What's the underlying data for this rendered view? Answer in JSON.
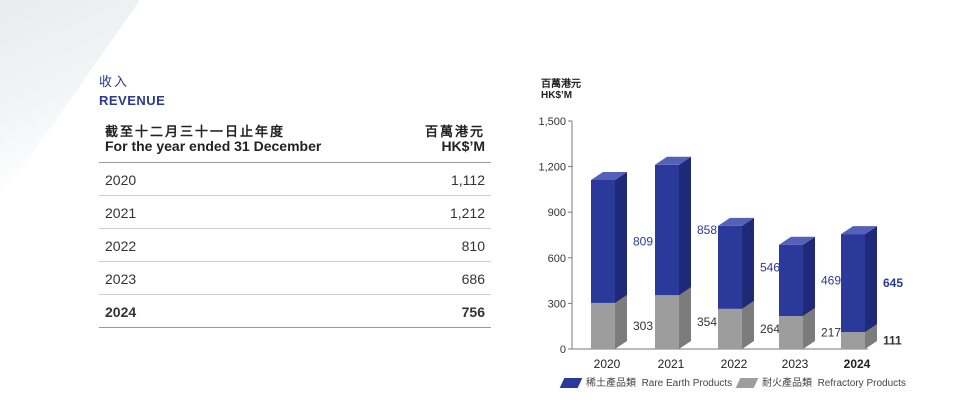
{
  "section": {
    "title_zh": "收入",
    "title_en": "REVENUE"
  },
  "table": {
    "header": {
      "col1_zh": "截至十二月三十一日止年度",
      "col1_en": "For the year ended 31 December",
      "col2_zh": "百萬港元",
      "col2_en": "HK$’M"
    },
    "rows": [
      {
        "year": "2020",
        "value": "1,112"
      },
      {
        "year": "2021",
        "value": "1,212"
      },
      {
        "year": "2022",
        "value": "810"
      },
      {
        "year": "2023",
        "value": "686"
      },
      {
        "year": "2024",
        "value": "756"
      }
    ]
  },
  "chart_data": {
    "type": "bar",
    "stacked": true,
    "unit_zh": "百萬港元",
    "unit_en": "HK$’M",
    "categories": [
      "2020",
      "2021",
      "2022",
      "2023",
      "2024"
    ],
    "highlight_category": "2024",
    "ylim": [
      0,
      1500
    ],
    "yticks": [
      0,
      300,
      600,
      900,
      1200,
      1500
    ],
    "ytick_labels": [
      "0",
      "300",
      "600",
      "900",
      "1,200",
      "1,500"
    ],
    "series": [
      {
        "name": "稀土產品類 Rare Earth Products",
        "name_zh": "稀土產品類",
        "name_en": "Rare Earth Products",
        "color": "#2b3a9a",
        "values": [
          809,
          858,
          546,
          469,
          645
        ]
      },
      {
        "name": "耐火產品類 Refractory Products",
        "name_zh": "耐火產品類",
        "name_en": "Refractory Products",
        "color": "#9d9d9d",
        "values": [
          303,
          354,
          264,
          217,
          111
        ]
      }
    ],
    "legend_position": "bottom",
    "grid": false
  }
}
